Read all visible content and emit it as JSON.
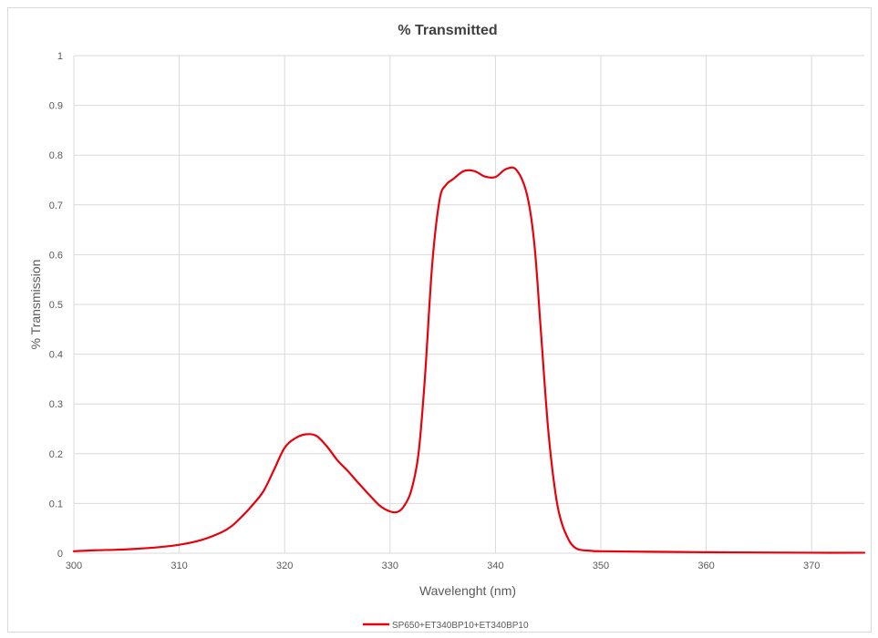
{
  "chart_data": {
    "type": "line",
    "title": "% Transmitted",
    "xlabel": "Wavelenght (nm)",
    "ylabel": "% Transmission",
    "xlim": [
      300,
      375
    ],
    "ylim": [
      0,
      1
    ],
    "x_ticks": [
      "300",
      "310",
      "320",
      "330",
      "340",
      "350",
      "360",
      "370"
    ],
    "y_ticks": [
      "0",
      "0.1",
      "0.2",
      "0.3",
      "0.4",
      "0.5",
      "0.6",
      "0.7",
      "0.8",
      "0.9",
      "1"
    ],
    "grid": true,
    "legend_position": "bottom",
    "series": [
      {
        "name": "SP650+ET340BP10+ET340BP10",
        "color": "#e8000b",
        "points": [
          [
            300,
            0.004
          ],
          [
            302,
            0.006
          ],
          [
            304,
            0.007
          ],
          [
            306,
            0.009
          ],
          [
            308,
            0.012
          ],
          [
            310,
            0.017
          ],
          [
            312,
            0.026
          ],
          [
            314,
            0.042
          ],
          [
            315,
            0.055
          ],
          [
            316,
            0.075
          ],
          [
            317,
            0.098
          ],
          [
            318,
            0.125
          ],
          [
            319,
            0.168
          ],
          [
            320,
            0.212
          ],
          [
            321,
            0.231
          ],
          [
            322,
            0.239
          ],
          [
            323,
            0.236
          ],
          [
            324,
            0.215
          ],
          [
            325,
            0.187
          ],
          [
            326,
            0.165
          ],
          [
            327,
            0.141
          ],
          [
            328,
            0.118
          ],
          [
            329,
            0.096
          ],
          [
            330,
            0.084
          ],
          [
            330.7,
            0.083
          ],
          [
            331.3,
            0.094
          ],
          [
            332,
            0.125
          ],
          [
            332.7,
            0.2
          ],
          [
            333.3,
            0.35
          ],
          [
            334,
            0.58
          ],
          [
            334.7,
            0.71
          ],
          [
            335.3,
            0.74
          ],
          [
            336,
            0.752
          ],
          [
            337,
            0.768
          ],
          [
            338,
            0.768
          ],
          [
            339,
            0.757
          ],
          [
            340,
            0.756
          ],
          [
            341,
            0.772
          ],
          [
            342,
            0.77
          ],
          [
            343,
            0.72
          ],
          [
            343.7,
            0.62
          ],
          [
            344.3,
            0.45
          ],
          [
            345,
            0.25
          ],
          [
            345.7,
            0.12
          ],
          [
            346.3,
            0.06
          ],
          [
            347,
            0.025
          ],
          [
            347.5,
            0.012
          ],
          [
            348,
            0.007
          ],
          [
            349,
            0.005
          ],
          [
            350,
            0.004
          ],
          [
            355,
            0.003
          ],
          [
            360,
            0.002
          ],
          [
            365,
            0.0015
          ],
          [
            370,
            0.001
          ],
          [
            375,
            0.001
          ]
        ]
      }
    ]
  }
}
